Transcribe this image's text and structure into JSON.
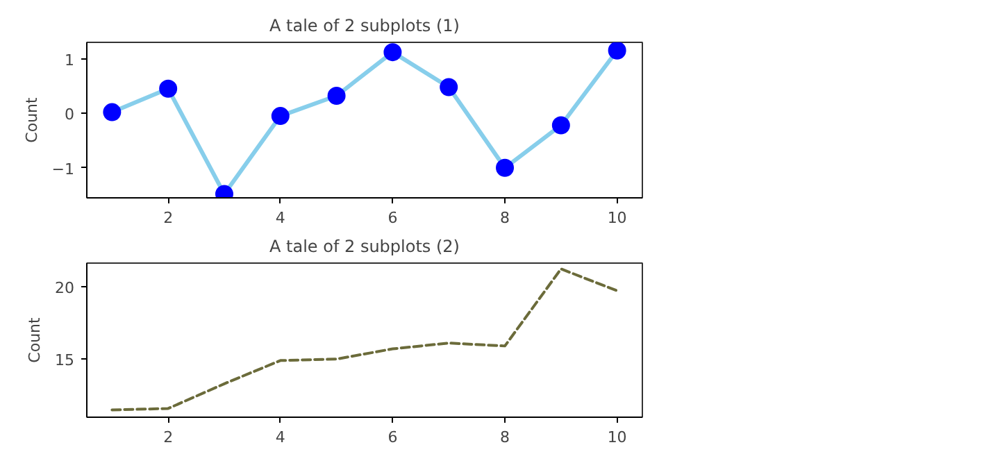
{
  "chart_data": [
    {
      "type": "line",
      "title": "A tale of 2 subplots (1)",
      "ylabel": "Count",
      "x": [
        1,
        2,
        3,
        4,
        5,
        6,
        7,
        8,
        9,
        10
      ],
      "series": [
        {
          "color": "#87ceeb",
          "colors": [
            "#0000ff",
            "#0000ff",
            "#0000ff",
            "#0000ff",
            "#0000ff",
            "#0000ff",
            "#0000ff",
            "#0000ff",
            "#0000ff",
            "#0000ff"
          ],
          "values": [
            0.02,
            0.45,
            -1.48,
            -0.05,
            0.32,
            1.12,
            0.48,
            -1.0,
            -0.22,
            1.15
          ]
        }
      ],
      "xlim": [
        0.55,
        10.45
      ],
      "xticks": [
        2,
        4,
        6,
        8,
        10
      ],
      "ylim": [
        -1.55,
        1.3
      ],
      "yticks": [
        {
          "value": -1,
          "label": "−1"
        },
        0,
        1
      ],
      "grid": false,
      "marker": "circle",
      "line_style": "solid"
    },
    {
      "type": "line",
      "title": "A tale of 2 subplots (2)",
      "ylabel": "Count",
      "x": [
        1,
        2,
        3,
        4,
        5,
        6,
        7,
        8,
        9,
        10
      ],
      "series": [
        {
          "color": "#6b6b3a",
          "values": [
            11.5,
            11.6,
            13.3,
            14.9,
            15.0,
            15.7,
            16.1,
            15.9,
            21.2,
            19.7
          ]
        }
      ],
      "xlim": [
        0.55,
        10.45
      ],
      "xticks": [
        2,
        4,
        6,
        8,
        10
      ],
      "ylim": [
        11,
        21.6
      ],
      "yticks": [
        15,
        20
      ],
      "grid": false,
      "marker": "none",
      "line_style": "dashed"
    }
  ]
}
